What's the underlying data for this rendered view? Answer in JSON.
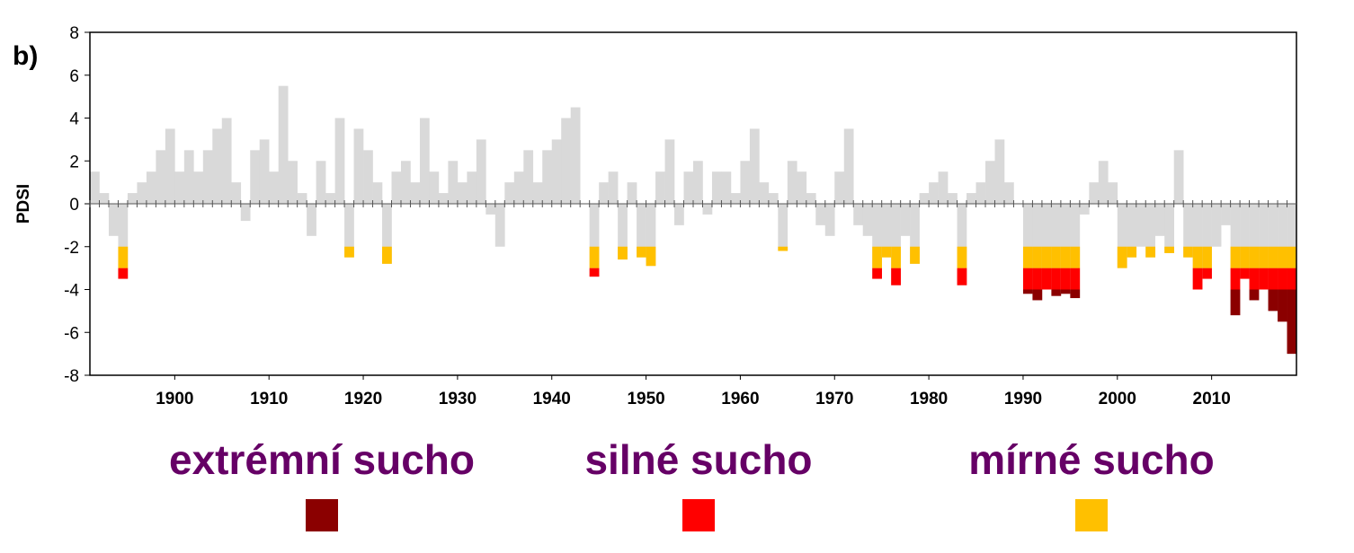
{
  "chart_data": {
    "type": "area",
    "panel_label": "b)",
    "y_label": "PDSI",
    "base_color": "#d9d9d9",
    "xlim": [
      1891,
      2019
    ],
    "ylim": [
      -8,
      8
    ],
    "xticks": [
      1900,
      1910,
      1920,
      1930,
      1940,
      1950,
      1960,
      1970,
      1980,
      1990,
      2000,
      2010
    ],
    "yticks": [
      -8,
      -6,
      -4,
      -2,
      0,
      2,
      4,
      6,
      8
    ],
    "drought_levels": [
      {
        "name": "extrémní sucho",
        "color": "#8b0000",
        "below": -4
      },
      {
        "name": "silné sucho",
        "color": "#ff0000",
        "below": -3
      },
      {
        "name": "mírné sucho",
        "color": "#ffc000",
        "below": -2
      }
    ],
    "x": [
      1891,
      1892,
      1893,
      1894,
      1895,
      1896,
      1897,
      1898,
      1899,
      1900,
      1901,
      1902,
      1903,
      1904,
      1905,
      1906,
      1907,
      1908,
      1909,
      1910,
      1911,
      1912,
      1913,
      1914,
      1915,
      1916,
      1917,
      1918,
      1919,
      1920,
      1921,
      1922,
      1923,
      1924,
      1925,
      1926,
      1927,
      1928,
      1929,
      1930,
      1931,
      1932,
      1933,
      1934,
      1935,
      1936,
      1937,
      1938,
      1939,
      1940,
      1941,
      1942,
      1943,
      1944,
      1945,
      1946,
      1947,
      1948,
      1949,
      1950,
      1951,
      1952,
      1953,
      1954,
      1955,
      1956,
      1957,
      1958,
      1959,
      1960,
      1961,
      1962,
      1963,
      1964,
      1965,
      1966,
      1967,
      1968,
      1969,
      1970,
      1971,
      1972,
      1973,
      1974,
      1975,
      1976,
      1977,
      1978,
      1979,
      1980,
      1981,
      1982,
      1983,
      1984,
      1985,
      1986,
      1987,
      1988,
      1989,
      1990,
      1991,
      1992,
      1993,
      1994,
      1995,
      1996,
      1997,
      1998,
      1999,
      2000,
      2001,
      2002,
      2003,
      2004,
      2005,
      2006,
      2007,
      2008,
      2009,
      2010,
      2011,
      2012,
      2013,
      2014,
      2015,
      2016,
      2017,
      2018
    ],
    "values": [
      1.5,
      0.5,
      -1.5,
      -3.5,
      0.5,
      1,
      1.5,
      2.5,
      3.5,
      1.5,
      2.5,
      1.5,
      2.5,
      3.5,
      4,
      1,
      -0.8,
      2.5,
      3,
      1.5,
      5.5,
      2,
      0.5,
      -1.5,
      2,
      0.5,
      4,
      -2.5,
      3.5,
      2.5,
      1,
      -2.8,
      1.5,
      2,
      1,
      4,
      1.5,
      0.5,
      2,
      1,
      1.5,
      3,
      -0.5,
      -2,
      1,
      1.5,
      2.5,
      1,
      2.5,
      3,
      4,
      4.5,
      0,
      -3.4,
      1,
      1.5,
      -2.6,
      1,
      -2.5,
      -2.9,
      1.5,
      3,
      -1,
      1.5,
      2,
      -0.5,
      1.5,
      1.5,
      0.5,
      2,
      3.5,
      1,
      0.5,
      -2.2,
      2,
      1.5,
      0.5,
      -1,
      -1.5,
      1.5,
      3.5,
      -1,
      -1.5,
      -3.5,
      -2.5,
      -3.8,
      -1.5,
      -2.8,
      0.5,
      1,
      1.5,
      0.5,
      -3.8,
      0.5,
      1,
      2,
      3,
      1,
      0,
      -4.2,
      -4.5,
      -4,
      -4.3,
      -4.2,
      -4.4,
      -0.5,
      1,
      2,
      1,
      -3,
      -2.5,
      -2,
      -2.5,
      -1.5,
      -2.3,
      2.5,
      -2.5,
      -4,
      -3.5,
      -2,
      -1,
      -5.2,
      -3.5,
      -4.5,
      -4,
      -5,
      -5.5,
      -7
    ]
  }
}
